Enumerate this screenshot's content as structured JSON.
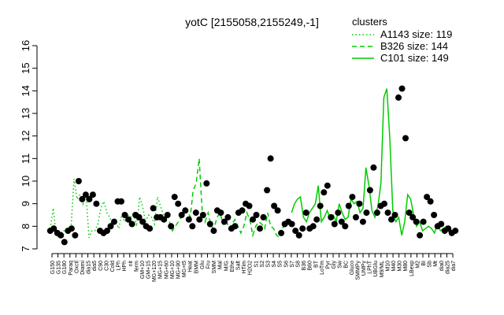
{
  "chart_data": {
    "type": "line",
    "title": "yotC [2155058,2155249,-1]",
    "xlabel": "",
    "ylabel": "",
    "ylim": [
      7,
      16
    ],
    "y_ticks": [
      7,
      8,
      9,
      10,
      11,
      12,
      13,
      14,
      15,
      16
    ],
    "grid": false,
    "legend_placement": "top-right",
    "legend_title": "clusters",
    "x_tick_labels": [
      "G150",
      "G135",
      "G180",
      "Paraq",
      "Oxctl",
      "Diami",
      "dia15",
      "dia5",
      "C90",
      "C30",
      "Cold",
      "LPh",
      "HPh",
      "nit",
      "ferm",
      "GM+10",
      "GM+15",
      "MG+120",
      "MG+15",
      "MG+60",
      "MG+10",
      "MG+90",
      "MG+t5",
      "Heat",
      "BMM",
      "Glu",
      "Fru",
      "SMM",
      "Mal",
      "M/G",
      "Ethe",
      "Salt",
      "HTim",
      "H2O2",
      "S1",
      "S2",
      "S3",
      "S4",
      "S5",
      "S6",
      "S7",
      "S8",
      "B36",
      "B60",
      "BT",
      "LoTm",
      "Pyr",
      "Gly",
      "Sw",
      "BC",
      "Gluco",
      "SMMPy",
      "UMPy",
      "LPhT",
      "UBGlu",
      "M9/ML",
      "M10",
      "M40",
      "M30",
      "M80",
      "LBexp",
      "M2",
      "BI",
      "Sb",
      "Mt",
      "dia0",
      "dia25",
      "dia7"
    ],
    "series": [
      {
        "name": "A1143 size: 119",
        "style": "dotted",
        "color": "#00cc00",
        "x": [
          1,
          2,
          3,
          4,
          5,
          6,
          7,
          8,
          9,
          10,
          11,
          12,
          13,
          14,
          15,
          16,
          17,
          18,
          19,
          20,
          21,
          22,
          23,
          24,
          25,
          26,
          27,
          28,
          29,
          30,
          31,
          32,
          33,
          34,
          35,
          36,
          37,
          38,
          39,
          40
        ],
        "y": [
          7.9,
          8.8,
          7.6,
          7.5,
          7.8,
          7.8,
          7.7,
          8.0,
          10.1,
          9.2,
          9.4,
          9.0,
          9.5,
          7.5,
          7.8,
          7.8,
          8.1,
          8.8,
          9.1,
          8.6,
          8.4,
          8.0,
          8.2,
          7.9,
          8.5,
          8.2,
          8.5,
          8.4,
          8.6,
          8.0,
          9.3,
          8.9,
          8.2,
          8.5,
          8.4,
          8.1,
          9.3,
          8.9,
          8.5,
          8.3
        ]
      },
      {
        "name": "B326 size: 144",
        "style": "dashed",
        "color": "#00cc00",
        "x": [
          41,
          42,
          43,
          44,
          45,
          46,
          47,
          48,
          49,
          50,
          51,
          52,
          53,
          54,
          55,
          56,
          57,
          58,
          59,
          60,
          61,
          62,
          63,
          64,
          65,
          66,
          67,
          68,
          69,
          70,
          71,
          72,
          73,
          74,
          75,
          76,
          77,
          78,
          79,
          80,
          81
        ],
        "y": [
          8.2,
          7.8,
          8.0,
          8.2,
          8.4,
          8.6,
          8.7,
          8.4,
          9.6,
          9.9,
          11.0,
          8.7,
          8.2,
          8.6,
          8.0,
          7.9,
          8.4,
          8.6,
          8.1,
          8.3,
          7.9,
          8.1,
          8.3,
          8.0,
          7.7,
          8.0,
          8.6,
          8.3,
          7.6,
          8.0,
          8.2,
          8.1,
          7.9,
          8.6,
          8.0,
          7.9,
          7.6,
          7.5,
          7.9,
          8.2,
          8.3
        ]
      },
      {
        "name": "C101 size: 149",
        "style": "solid",
        "color": "#00cc00",
        "x": [
          82,
          83,
          84,
          85,
          86,
          87,
          88,
          89,
          90,
          91,
          92,
          93,
          94,
          95,
          96,
          97,
          98,
          99,
          100,
          101,
          102,
          103,
          104,
          105,
          106,
          107,
          108,
          109,
          110,
          111,
          112,
          113,
          114,
          115,
          116,
          117,
          118,
          119,
          120,
          121,
          122,
          123,
          124,
          125,
          126,
          127,
          128,
          129,
          130,
          131,
          132,
          133,
          134,
          135,
          136,
          137
        ],
        "y": [
          8.6,
          9.0,
          9.2,
          9.3,
          8.4,
          8.2,
          8.6,
          8.8,
          9.0,
          9.8,
          8.2,
          8.4,
          8.7,
          8.3,
          8.5,
          8.2,
          9.0,
          8.6,
          8.3,
          8.4,
          9.2,
          9.0,
          9.1,
          8.6,
          8.8,
          10.6,
          9.8,
          8.7,
          8.4,
          8.9,
          9.9,
          13.7,
          14.1,
          11.9,
          8.7,
          8.2,
          8.4,
          7.6,
          8.2,
          9.4,
          9.2,
          8.5,
          8.0,
          8.2,
          7.8,
          7.9,
          8.0,
          7.9,
          7.7,
          8.1,
          7.8,
          7.9,
          8.0,
          7.7,
          7.8,
          7.8
        ]
      }
    ],
    "points": [
      {
        "x": 1,
        "y": 7.8
      },
      {
        "x": 2,
        "y": 7.9
      },
      {
        "x": 3,
        "y": 7.7
      },
      {
        "x": 4,
        "y": 7.6
      },
      {
        "x": 5,
        "y": 7.3
      },
      {
        "x": 6,
        "y": 7.8
      },
      {
        "x": 7,
        "y": 7.9
      },
      {
        "x": 8,
        "y": 7.6
      },
      {
        "x": 9,
        "y": 10.0
      },
      {
        "x": 10,
        "y": 9.2
      },
      {
        "x": 11,
        "y": 9.4
      },
      {
        "x": 12,
        "y": 9.2
      },
      {
        "x": 13,
        "y": 9.4
      },
      {
        "x": 14,
        "y": 9.0
      },
      {
        "x": 15,
        "y": 7.8
      },
      {
        "x": 16,
        "y": 7.7
      },
      {
        "x": 17,
        "y": 7.8
      },
      {
        "x": 18,
        "y": 8.0
      },
      {
        "x": 19,
        "y": 8.2
      },
      {
        "x": 20,
        "y": 9.1
      },
      {
        "x": 21,
        "y": 9.1
      },
      {
        "x": 22,
        "y": 8.5
      },
      {
        "x": 23,
        "y": 8.3
      },
      {
        "x": 24,
        "y": 8.1
      },
      {
        "x": 25,
        "y": 8.5
      },
      {
        "x": 26,
        "y": 8.4
      },
      {
        "x": 27,
        "y": 8.2
      },
      {
        "x": 28,
        "y": 8.0
      },
      {
        "x": 29,
        "y": 7.9
      },
      {
        "x": 30,
        "y": 8.8
      },
      {
        "x": 31,
        "y": 8.4
      },
      {
        "x": 32,
        "y": 8.4
      },
      {
        "x": 33,
        "y": 8.3
      },
      {
        "x": 34,
        "y": 8.5
      },
      {
        "x": 35,
        "y": 8.0
      },
      {
        "x": 36,
        "y": 9.3
      },
      {
        "x": 37,
        "y": 9.0
      },
      {
        "x": 38,
        "y": 8.5
      },
      {
        "x": 39,
        "y": 8.7
      },
      {
        "x": 40,
        "y": 8.3
      },
      {
        "x": 41,
        "y": 8.0
      },
      {
        "x": 42,
        "y": 8.6
      },
      {
        "x": 43,
        "y": 8.3
      },
      {
        "x": 44,
        "y": 8.5
      },
      {
        "x": 45,
        "y": 9.9
      },
      {
        "x": 46,
        "y": 8.1
      },
      {
        "x": 47,
        "y": 7.8
      },
      {
        "x": 48,
        "y": 8.7
      },
      {
        "x": 49,
        "y": 8.6
      },
      {
        "x": 50,
        "y": 8.2
      },
      {
        "x": 51,
        "y": 8.4
      },
      {
        "x": 52,
        "y": 7.9
      },
      {
        "x": 53,
        "y": 8.0
      },
      {
        "x": 54,
        "y": 8.6
      },
      {
        "x": 55,
        "y": 8.7
      },
      {
        "x": 56,
        "y": 9.0
      },
      {
        "x": 57,
        "y": 8.9
      },
      {
        "x": 58,
        "y": 8.3
      },
      {
        "x": 59,
        "y": 8.5
      },
      {
        "x": 60,
        "y": 7.9
      },
      {
        "x": 61,
        "y": 8.4
      },
      {
        "x": 62,
        "y": 9.6
      },
      {
        "x": 63,
        "y": 11.0
      },
      {
        "x": 64,
        "y": 8.9
      },
      {
        "x": 65,
        "y": 8.7
      },
      {
        "x": 66,
        "y": 7.7
      },
      {
        "x": 67,
        "y": 8.1
      },
      {
        "x": 68,
        "y": 8.2
      },
      {
        "x": 69,
        "y": 8.1
      },
      {
        "x": 70,
        "y": 7.8
      },
      {
        "x": 71,
        "y": 7.6
      },
      {
        "x": 72,
        "y": 7.9
      },
      {
        "x": 73,
        "y": 8.6
      },
      {
        "x": 74,
        "y": 7.9
      },
      {
        "x": 75,
        "y": 8.0
      },
      {
        "x": 76,
        "y": 8.3
      },
      {
        "x": 77,
        "y": 8.9
      },
      {
        "x": 78,
        "y": 9.5
      },
      {
        "x": 79,
        "y": 9.8
      },
      {
        "x": 80,
        "y": 8.4
      },
      {
        "x": 81,
        "y": 8.1
      },
      {
        "x": 82,
        "y": 8.6
      },
      {
        "x": 83,
        "y": 8.2
      },
      {
        "x": 84,
        "y": 8.0
      },
      {
        "x": 85,
        "y": 8.9
      },
      {
        "x": 86,
        "y": 9.3
      },
      {
        "x": 87,
        "y": 8.4
      },
      {
        "x": 88,
        "y": 9.0
      },
      {
        "x": 89,
        "y": 8.2
      },
      {
        "x": 90,
        "y": 8.6
      },
      {
        "x": 91,
        "y": 9.6
      },
      {
        "x": 92,
        "y": 10.6
      },
      {
        "x": 93,
        "y": 8.6
      },
      {
        "x": 94,
        "y": 8.9
      },
      {
        "x": 95,
        "y": 9.0
      },
      {
        "x": 96,
        "y": 8.6
      },
      {
        "x": 97,
        "y": 8.3
      },
      {
        "x": 98,
        "y": 8.5
      },
      {
        "x": 99,
        "y": 13.7
      },
      {
        "x": 100,
        "y": 14.1
      },
      {
        "x": 101,
        "y": 11.9
      },
      {
        "x": 102,
        "y": 8.6
      },
      {
        "x": 103,
        "y": 8.4
      },
      {
        "x": 104,
        "y": 8.2
      },
      {
        "x": 105,
        "y": 7.6
      },
      {
        "x": 106,
        "y": 8.2
      },
      {
        "x": 107,
        "y": 9.3
      },
      {
        "x": 108,
        "y": 9.1
      },
      {
        "x": 109,
        "y": 8.5
      },
      {
        "x": 110,
        "y": 8.0
      },
      {
        "x": 111,
        "y": 8.1
      },
      {
        "x": 112,
        "y": 7.8
      },
      {
        "x": 113,
        "y": 7.9
      },
      {
        "x": 114,
        "y": 7.7
      },
      {
        "x": 115,
        "y": 7.8
      }
    ]
  }
}
